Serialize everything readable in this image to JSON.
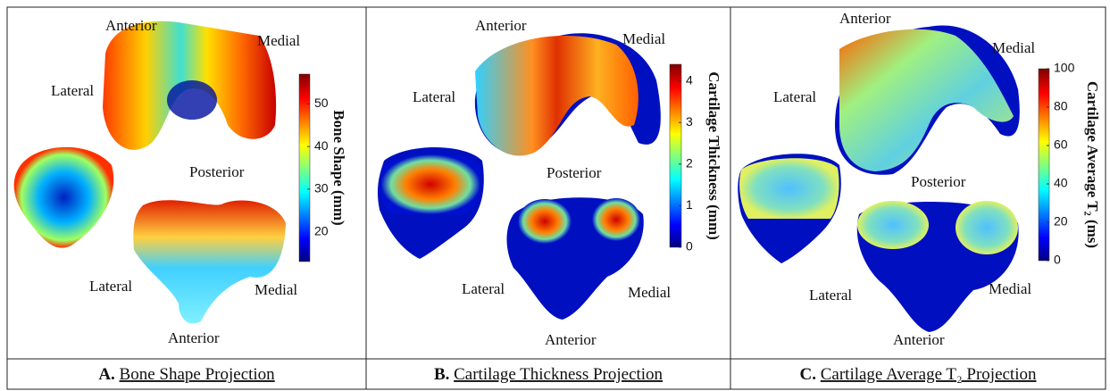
{
  "panels": [
    {
      "labels": [
        "Anterior",
        "Medial",
        "Lateral",
        "Posterior",
        "Lateral",
        "Medial",
        "Anterior"
      ],
      "colorbar": {
        "label": "Bone Shape (mm)",
        "range": [
          13,
          57
        ],
        "ticks": [
          20,
          30,
          40,
          50
        ]
      },
      "caption": {
        "letter": "A.",
        "text": "Bone Shape Projection"
      }
    },
    {
      "labels": [
        "Anterior",
        "Medial",
        "Lateral",
        "Posterior",
        "Lateral",
        "Medial",
        "Anterior"
      ],
      "colorbar": {
        "label": "Cartilage Thickness (mm)",
        "range": [
          0,
          4.4
        ],
        "ticks": [
          0,
          1,
          2,
          3,
          4
        ]
      },
      "caption": {
        "letter": "B.",
        "text": "Cartilage Thickness Projection"
      }
    },
    {
      "labels": [
        "Anterior",
        "Medial",
        "Lateral",
        "Posterior",
        "Lateral",
        "Medial",
        "Anterior"
      ],
      "colorbar": {
        "label": "Cartilage Average T₂ (ms)",
        "range": [
          0,
          100
        ],
        "ticks": [
          0,
          20,
          40,
          60,
          80,
          100
        ]
      },
      "caption": {
        "letter": "C.",
        "text": "Cartilage Average T₂ Projection"
      }
    }
  ]
}
